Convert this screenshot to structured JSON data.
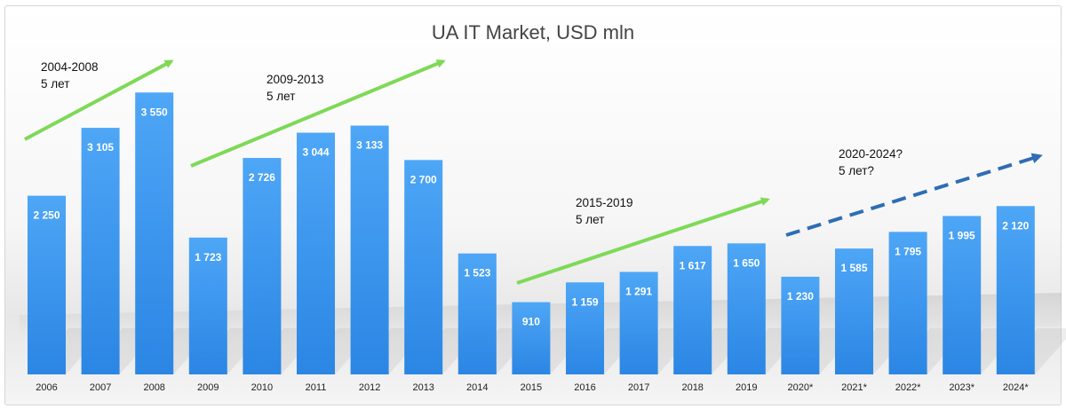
{
  "chart_data": {
    "type": "bar",
    "title": "UA IT Market, USD mln",
    "xlabel": "",
    "ylabel": "",
    "ylim": [
      0,
      4000
    ],
    "grid": false,
    "legend": "none",
    "categories": [
      "2006",
      "2007",
      "2008",
      "2009",
      "2010",
      "2011",
      "2012",
      "2013",
      "2014",
      "2015",
      "2016",
      "2017",
      "2018",
      "2019",
      "2020*",
      "2021*",
      "2022*",
      "2023*",
      "2024*"
    ],
    "values": [
      2250,
      3105,
      3550,
      1723,
      2726,
      3044,
      3133,
      2700,
      1523,
      910,
      1159,
      1291,
      1617,
      1650,
      1230,
      1585,
      1795,
      1995,
      2120
    ],
    "value_labels": [
      "2 250",
      "3 105",
      "3 550",
      "1 723",
      "2 726",
      "3 044",
      "3 133",
      "2 700",
      "1 523",
      "910",
      "1 159",
      "1 291",
      "1 617",
      "1 650",
      "1 230",
      "1 585",
      "1 795",
      "1 995",
      "2 120"
    ],
    "annotations": [
      {
        "period": "2004-2008",
        "note": "5 лет",
        "style": "solid",
        "color": "#7ed957"
      },
      {
        "period": "2009-2013",
        "note": "5 лет",
        "style": "solid",
        "color": "#7ed957"
      },
      {
        "period": "2015-2019",
        "note": "5 лет",
        "style": "solid",
        "color": "#7ed957"
      },
      {
        "period": "2020-2024?",
        "note": "5 лет?",
        "style": "dashed",
        "color": "#2f6db5"
      }
    ],
    "colors": {
      "bar_top": "#4ea6f6",
      "bar_bottom": "#2b86e4"
    }
  }
}
